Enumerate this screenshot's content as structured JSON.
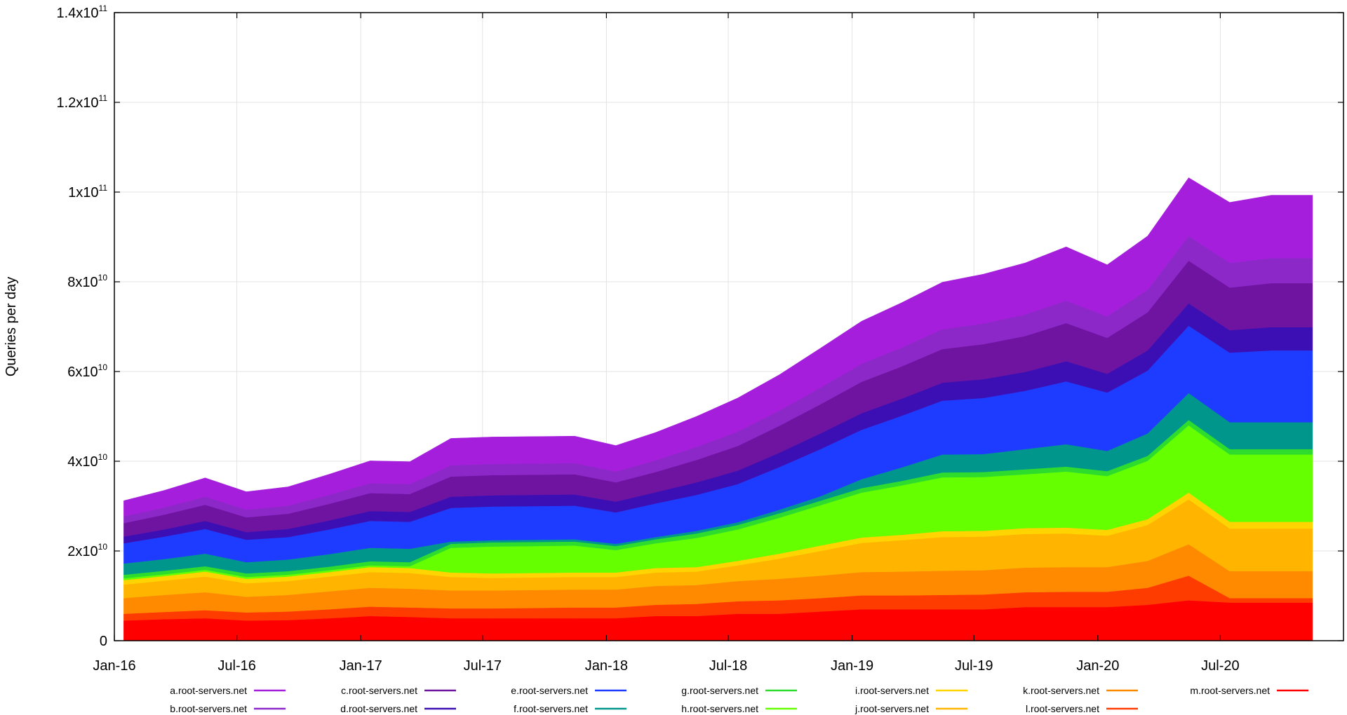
{
  "chart_data": {
    "type": "area",
    "title": "",
    "xlabel": "",
    "ylabel": "Queries per day",
    "xlim": [
      "2016-01-01",
      "2020-12-31"
    ],
    "ylim": [
      0,
      140000000000
    ],
    "grid": true,
    "legend_placement": "bottom",
    "x_ticks": [
      "Jan-16",
      "Jul-16",
      "Jan-17",
      "Jul-17",
      "Jan-18",
      "Jul-18",
      "Jan-19",
      "Jul-19",
      "Jan-20",
      "Jul-20"
    ],
    "y_ticks": [
      {
        "base": "0",
        "exp": ""
      },
      {
        "base": "2x10",
        "exp": "10"
      },
      {
        "base": "4x10",
        "exp": "10"
      },
      {
        "base": "6x10",
        "exp": "10"
      },
      {
        "base": "8x10",
        "exp": "10"
      },
      {
        "base": "1x10",
        "exp": "11"
      },
      {
        "base": "1.2x10",
        "exp": "11"
      },
      {
        "base": "1.4x10",
        "exp": "11"
      }
    ],
    "x": [
      "2016-01",
      "2016-03",
      "2016-05",
      "2016-07",
      "2016-09",
      "2016-11",
      "2017-01",
      "2017-03",
      "2017-05",
      "2017-07",
      "2017-09",
      "2017-11",
      "2018-01",
      "2018-03",
      "2018-05",
      "2018-07",
      "2018-09",
      "2018-11",
      "2019-01",
      "2019-03",
      "2019-05",
      "2019-07",
      "2019-09",
      "2019-11",
      "2020-01",
      "2020-03",
      "2020-05",
      "2020-07",
      "2020-09",
      "2020-11"
    ],
    "series": [
      {
        "name": "m.root-servers.net",
        "color": "#ff0000",
        "values": [
          4500000000.0,
          4800000000.0,
          5000000000.0,
          4500000000.0,
          4600000000.0,
          5000000000.0,
          5500000000.0,
          5300000000.0,
          5000000000.0,
          5000000000.0,
          5000000000.0,
          5000000000.0,
          5000000000.0,
          5500000000.0,
          5500000000.0,
          6000000000.0,
          6000000000.0,
          6500000000.0,
          7000000000.0,
          7000000000.0,
          7000000000.0,
          7000000000.0,
          7500000000.0,
          7500000000.0,
          7500000000.0,
          8000000000.0,
          9000000000.0,
          8500000000.0,
          8500000000.0,
          8500000000.0
        ]
      },
      {
        "name": "l.root-servers.net",
        "color": "#ff3c00",
        "values": [
          1500000000.0,
          1600000000.0,
          1800000000.0,
          1800000000.0,
          1900000000.0,
          2000000000.0,
          2100000000.0,
          2100000000.0,
          2200000000.0,
          2200000000.0,
          2300000000.0,
          2400000000.0,
          2400000000.0,
          2500000000.0,
          2700000000.0,
          2800000000.0,
          3000000000.0,
          3000000000.0,
          3100000000.0,
          3100000000.0,
          3200000000.0,
          3300000000.0,
          3300000000.0,
          3400000000.0,
          3400000000.0,
          3800000000.0,
          5500000000.0,
          1000000000.0,
          1000000000.0,
          1000000000.0
        ]
      },
      {
        "name": "k.root-servers.net",
        "color": "#ff8a00",
        "values": [
          3500000000.0,
          3800000000.0,
          4000000000.0,
          3500000000.0,
          3700000000.0,
          4000000000.0,
          4200000000.0,
          4200000000.0,
          4000000000.0,
          4000000000.0,
          4000000000.0,
          4000000000.0,
          4000000000.0,
          4200000000.0,
          4200000000.0,
          4500000000.0,
          4800000000.0,
          5000000000.0,
          5200000000.0,
          5300000000.0,
          5400000000.0,
          5400000000.0,
          5500000000.0,
          5500000000.0,
          5500000000.0,
          6000000000.0,
          7000000000.0,
          6000000000.0,
          6000000000.0,
          6000000000.0
        ]
      },
      {
        "name": "j.root-servers.net",
        "color": "#ffb400",
        "values": [
          3000000000.0,
          3200000000.0,
          3500000000.0,
          3000000000.0,
          3100000000.0,
          3300000000.0,
          3500000000.0,
          3500000000.0,
          3000000000.0,
          2800000000.0,
          2800000000.0,
          2800000000.0,
          2800000000.0,
          3000000000.0,
          3000000000.0,
          3500000000.0,
          4500000000.0,
          5500000000.0,
          6500000000.0,
          7000000000.0,
          7500000000.0,
          7500000000.0,
          7500000000.0,
          7500000000.0,
          7000000000.0,
          8000000000.0,
          10000000000.0,
          9500000000.0,
          9500000000.0,
          9500000000.0
        ]
      },
      {
        "name": "i.root-servers.net",
        "color": "#ffd400",
        "values": [
          1000000000.0,
          1000000000.0,
          1100000000.0,
          1000000000.0,
          1000000000.0,
          1000000000.0,
          1100000000.0,
          1100000000.0,
          1000000000.0,
          1000000000.0,
          1000000000.0,
          1000000000.0,
          1000000000.0,
          1000000000.0,
          1000000000.0,
          1000000000.0,
          1100000000.0,
          1200000000.0,
          1200000000.0,
          1200000000.0,
          1300000000.0,
          1300000000.0,
          1300000000.0,
          1300000000.0,
          1300000000.0,
          1300000000.0,
          1500000000.0,
          1500000000.0,
          1500000000.0,
          1500000000.0
        ]
      },
      {
        "name": "h.root-servers.net",
        "color": "#66ff00",
        "values": [
          400000000.0,
          400000000.0,
          400000000.0,
          400000000.0,
          400000000.0,
          400000000.0,
          400000000.0,
          400000000.0,
          5500000000.0,
          6000000000.0,
          6000000000.0,
          6000000000.0,
          5000000000.0,
          5500000000.0,
          6500000000.0,
          7000000000.0,
          8000000000.0,
          9000000000.0,
          10000000000.0,
          11000000000.0,
          12000000000.0,
          12000000000.0,
          12000000000.0,
          12500000000.0,
          12000000000.0,
          13000000000.0,
          15000000000.0,
          15000000000.0,
          15000000000.0,
          15000000000.0
        ]
      },
      {
        "name": "g.root-servers.net",
        "color": "#2edc2e",
        "values": [
          800000000.0,
          800000000.0,
          800000000.0,
          800000000.0,
          800000000.0,
          800000000.0,
          900000000.0,
          900000000.0,
          900000000.0,
          900000000.0,
          900000000.0,
          900000000.0,
          900000000.0,
          900000000.0,
          1000000000.0,
          1000000000.0,
          1000000000.0,
          1000000000.0,
          1000000000.0,
          1000000000.0,
          1100000000.0,
          1100000000.0,
          1100000000.0,
          1100000000.0,
          1100000000.0,
          1100000000.0,
          1200000000.0,
          1200000000.0,
          1200000000.0,
          1200000000.0
        ]
      },
      {
        "name": "f.root-servers.net",
        "color": "#00968c",
        "values": [
          2500000000.0,
          2600000000.0,
          2800000000.0,
          2500000000.0,
          2600000000.0,
          2800000000.0,
          3000000000.0,
          3000000000.0,
          500000000.0,
          500000000.0,
          500000000.0,
          500000000.0,
          500000000.0,
          500000000.0,
          600000000.0,
          600000000.0,
          800000000.0,
          1000000000.0,
          2000000000.0,
          3000000000.0,
          4000000000.0,
          4000000000.0,
          4500000000.0,
          5000000000.0,
          4500000000.0,
          5000000000.0,
          6000000000.0,
          6000000000.0,
          6000000000.0,
          6000000000.0
        ]
      },
      {
        "name": "e.root-servers.net",
        "color": "#1e3cff",
        "values": [
          4500000000.0,
          5000000000.0,
          5500000000.0,
          5000000000.0,
          5000000000.0,
          5500000000.0,
          6000000000.0,
          6000000000.0,
          7500000000.0,
          7500000000.0,
          7500000000.0,
          7500000000.0,
          7000000000.0,
          7500000000.0,
          8000000000.0,
          8500000000.0,
          9500000000.0,
          10500000000.0,
          11000000000.0,
          11500000000.0,
          12000000000.0,
          12500000000.0,
          13000000000.0,
          14000000000.0,
          13000000000.0,
          14000000000.0,
          15000000000.0,
          15500000000.0,
          16000000000.0,
          16000000000.0
        ]
      },
      {
        "name": "d.root-servers.net",
        "color": "#3c0fb4",
        "values": [
          1500000000.0,
          1600000000.0,
          1800000000.0,
          1700000000.0,
          1800000000.0,
          2000000000.0,
          2200000000.0,
          2200000000.0,
          2500000000.0,
          2500000000.0,
          2500000000.0,
          2500000000.0,
          2400000000.0,
          2500000000.0,
          2800000000.0,
          3000000000.0,
          3200000000.0,
          3500000000.0,
          3700000000.0,
          3800000000.0,
          4000000000.0,
          4200000000.0,
          4200000000.0,
          4500000000.0,
          4200000000.0,
          4500000000.0,
          5000000000.0,
          5000000000.0,
          5200000000.0,
          5200000000.0
        ]
      },
      {
        "name": "c.root-servers.net",
        "color": "#6e14a0",
        "values": [
          3000000000.0,
          3300000000.0,
          3600000000.0,
          3300000000.0,
          3400000000.0,
          3700000000.0,
          4000000000.0,
          4000000000.0,
          4500000000.0,
          4500000000.0,
          4500000000.0,
          4500000000.0,
          4300000000.0,
          4500000000.0,
          5000000000.0,
          5500000000.0,
          6000000000.0,
          6500000000.0,
          7000000000.0,
          7200000000.0,
          7500000000.0,
          7800000000.0,
          8000000000.0,
          8500000000.0,
          8000000000.0,
          8500000000.0,
          9500000000.0,
          9500000000.0,
          9800000000.0,
          9800000000.0
        ]
      },
      {
        "name": "b.root-servers.net",
        "color": "#8c28c8",
        "values": [
          1500000000.0,
          1600000000.0,
          1800000000.0,
          1700000000.0,
          1800000000.0,
          2000000000.0,
          2200000000.0,
          2200000000.0,
          2500000000.0,
          2500000000.0,
          2500000000.0,
          2500000000.0,
          2400000000.0,
          2600000000.0,
          2900000000.0,
          3200000000.0,
          3400000000.0,
          3700000000.0,
          4000000000.0,
          4200000000.0,
          4400000000.0,
          4600000000.0,
          4800000000.0,
          5000000000.0,
          4800000000.0,
          5000000000.0,
          5500000000.0,
          5500000000.0,
          5600000000.0,
          5600000000.0
        ]
      },
      {
        "name": "a.root-servers.net",
        "color": "#a51edc",
        "values": [
          3500000000.0,
          3800000000.0,
          4200000000.0,
          4000000000.0,
          4200000000.0,
          4600000000.0,
          5000000000.0,
          5000000000.0,
          6000000000.0,
          6000000000.0,
          6000000000.0,
          6000000000.0,
          5800000000.0,
          6200000000.0,
          6800000000.0,
          7500000000.0,
          8000000000.0,
          8800000000.0,
          9500000000.0,
          10000000000.0,
          10500000000.0,
          11000000000.0,
          11500000000.0,
          12000000000.0,
          11500000000.0,
          12000000000.0,
          13000000000.0,
          13500000000.0,
          14000000000.0,
          14000000000.0
        ]
      }
    ],
    "legend": [
      {
        "label": "a.root-servers.net",
        "color": "#a51edc"
      },
      {
        "label": "b.root-servers.net",
        "color": "#8c28c8"
      },
      {
        "label": "c.root-servers.net",
        "color": "#6e14a0"
      },
      {
        "label": "d.root-servers.net",
        "color": "#3c0fb4"
      },
      {
        "label": "e.root-servers.net",
        "color": "#1e3cff"
      },
      {
        "label": "f.root-servers.net",
        "color": "#00968c"
      },
      {
        "label": "g.root-servers.net",
        "color": "#2edc2e"
      },
      {
        "label": "h.root-servers.net",
        "color": "#66ff00"
      },
      {
        "label": "i.root-servers.net",
        "color": "#ffd400"
      },
      {
        "label": "j.root-servers.net",
        "color": "#ffb400"
      },
      {
        "label": "k.root-servers.net",
        "color": "#ff8a00"
      },
      {
        "label": "l.root-servers.net",
        "color": "#ff3c00"
      },
      {
        "label": "m.root-servers.net",
        "color": "#ff0000"
      }
    ]
  }
}
